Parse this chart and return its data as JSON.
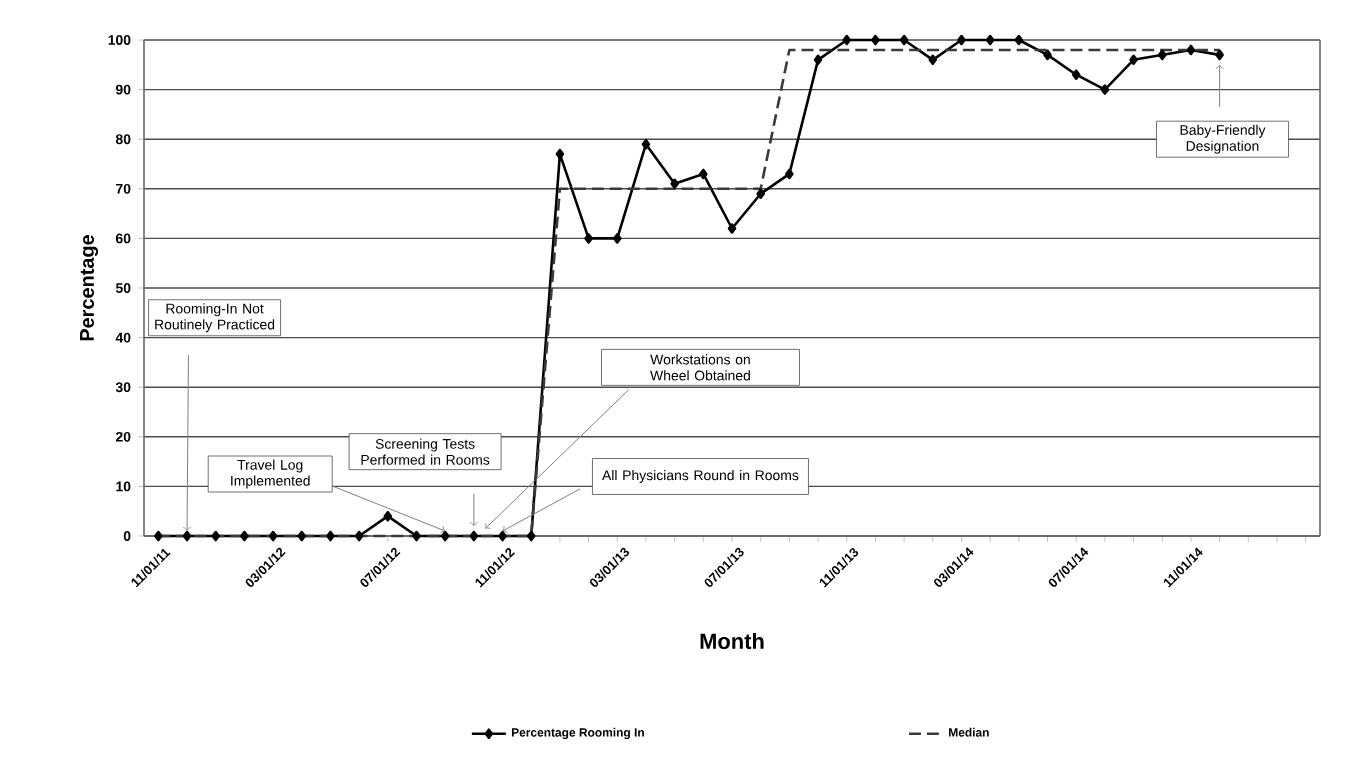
{
  "chart_data": {
    "type": "line",
    "xlabel": "Month",
    "ylabel": "Percentage",
    "categories": [
      "11/01/11",
      null,
      null,
      null,
      "03/01/12",
      null,
      null,
      null,
      "07/01/12",
      null,
      null,
      null,
      "11/01/12",
      null,
      null,
      null,
      "03/01/13",
      null,
      null,
      null,
      "07/01/13",
      null,
      null,
      null,
      "11/01/13",
      null,
      null,
      null,
      "03/01/14",
      null,
      null,
      null,
      "07/01/14",
      null,
      null,
      null,
      "11/01/14",
      null,
      null,
      null,
      null
    ],
    "series": [
      {
        "name": "Percentage Rooming In",
        "color": "#000000",
        "marker": "diamond",
        "line_style": "solid",
        "values": [
          0,
          0,
          0,
          0,
          0,
          0,
          0,
          0,
          4,
          0,
          0,
          0,
          0,
          0,
          77,
          60,
          60,
          79,
          71,
          73,
          62,
          69,
          73,
          96,
          100,
          100,
          100,
          96,
          100,
          100,
          100,
          97,
          93,
          90,
          96,
          97,
          98,
          97,
          null,
          null,
          null
        ]
      },
      {
        "name": "Median",
        "color": "#3a3a3a",
        "marker": "none",
        "line_style": "dashed",
        "values": [
          0,
          0,
          0,
          0,
          0,
          0,
          0,
          0,
          0,
          0,
          0,
          0,
          0,
          0,
          70,
          70,
          70,
          70,
          70,
          70,
          70,
          70,
          98,
          98,
          98,
          98,
          98,
          98,
          98,
          98,
          98,
          98,
          98,
          98,
          98,
          98,
          98,
          98,
          null,
          null,
          null
        ]
      }
    ],
    "ylim": [
      0,
      100
    ],
    "yticks": [
      0,
      10,
      20,
      30,
      40,
      50,
      60,
      70,
      80,
      90,
      100
    ],
    "grid": "y",
    "legend": "bottom",
    "annotations": [
      "Rooming-In Not Routinely Practiced",
      "Travel Log Implemented",
      "Screening Tests Performed in Rooms",
      "Workstations on Wheel Obtained",
      "All Physicians Round in Rooms",
      {
        "text": "Baby-Friendly Designation",
        "y": 97
      }
    ]
  }
}
